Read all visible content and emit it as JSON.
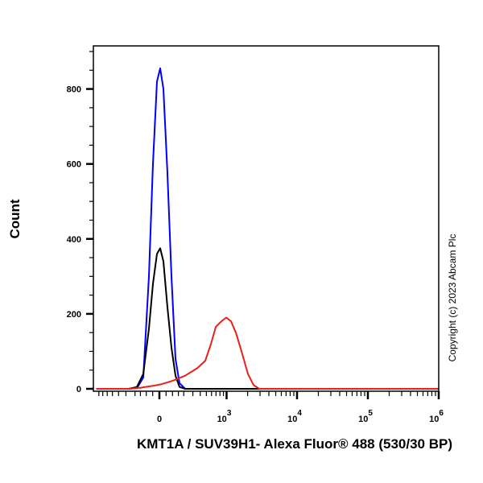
{
  "chart_data": {
    "type": "line",
    "title": "",
    "xlabel": "KMT1A / SUV39H1- Alexa Fluor® 488 (530/30 BP)",
    "ylabel": "Count",
    "x_scale": "biexponential",
    "xlim": [
      -870,
      1000000
    ],
    "ylim": [
      0,
      915
    ],
    "grid": false,
    "y_ticks": [
      {
        "value": 0,
        "label": "0"
      },
      {
        "value": 200,
        "label": "200"
      },
      {
        "value": 400,
        "label": "400"
      },
      {
        "value": 600,
        "label": "600"
      },
      {
        "value": 800,
        "label": "800"
      }
    ],
    "x_ticks": [
      {
        "value": 0,
        "base": "0",
        "exp": ""
      },
      {
        "value": 1000,
        "base": "10",
        "exp": "3"
      },
      {
        "value": 10000,
        "base": "10",
        "exp": "4"
      },
      {
        "value": 100000,
        "base": "10",
        "exp": "5"
      },
      {
        "value": 1000000,
        "base": "10",
        "exp": "6"
      }
    ],
    "series": [
      {
        "color": "#0000ff",
        "x": [
          -870,
          -266,
          -182,
          -125,
          -79,
          -48,
          -18,
          6,
          30,
          60,
          92,
          125,
          160,
          214,
          1000000
        ],
        "y": [
          0,
          0,
          2,
          30,
          300,
          600,
          820,
          855,
          800,
          580,
          300,
          80,
          15,
          0,
          0
        ]
      },
      {
        "color": "#000000",
        "x": [
          -870,
          -266,
          -182,
          -125,
          -79,
          -48,
          -18,
          6,
          30,
          60,
          92,
          125,
          160,
          214,
          1000000
        ],
        "y": [
          0,
          0,
          5,
          40,
          160,
          280,
          360,
          375,
          340,
          220,
          110,
          35,
          5,
          0,
          0
        ]
      },
      {
        "color": "#e8201c",
        "x": [
          -870,
          -266,
          -146,
          -48,
          12,
          105,
          214,
          357,
          481,
          589,
          693,
          839,
          987,
          1158,
          1359,
          1637,
          2020,
          2428,
          2920,
          1000000
        ],
        "y": [
          0,
          0,
          3,
          8,
          12,
          22,
          35,
          55,
          75,
          120,
          165,
          180,
          190,
          180,
          150,
          100,
          40,
          10,
          0,
          0
        ]
      }
    ]
  },
  "copyright": "Copyright (c) 2023 Abcam Plc"
}
